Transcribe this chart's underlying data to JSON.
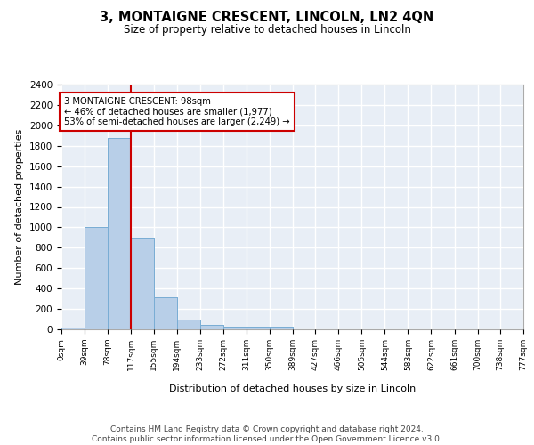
{
  "title": "3, MONTAIGNE CRESCENT, LINCOLN, LN2 4QN",
  "subtitle": "Size of property relative to detached houses in Lincoln",
  "xlabel": "Distribution of detached houses by size in Lincoln",
  "ylabel": "Number of detached properties",
  "bins": [
    0,
    39,
    78,
    117,
    155,
    194,
    233,
    272,
    311,
    350,
    389,
    427,
    466,
    505,
    544,
    583,
    622,
    661,
    700,
    738,
    777
  ],
  "bar_heights": [
    20,
    1000,
    1880,
    900,
    310,
    100,
    45,
    30,
    25,
    25,
    0,
    0,
    0,
    0,
    0,
    0,
    0,
    0,
    0,
    0
  ],
  "bar_color": "#b8cfe8",
  "bar_edge_color": "#7aadd4",
  "background_color": "#e8eef6",
  "grid_color": "#ffffff",
  "ylim": [
    0,
    2400
  ],
  "yticks": [
    0,
    200,
    400,
    600,
    800,
    1000,
    1200,
    1400,
    1600,
    1800,
    2000,
    2200,
    2400
  ],
  "red_line_x": 117,
  "annotation_text": "3 MONTAIGNE CRESCENT: 98sqm\n← 46% of detached houses are smaller (1,977)\n53% of semi-detached houses are larger (2,249) →",
  "annotation_box_color": "#ffffff",
  "annotation_border_color": "#cc0000",
  "footer_text": "Contains HM Land Registry data © Crown copyright and database right 2024.\nContains public sector information licensed under the Open Government Licence v3.0.",
  "tick_labels": [
    "0sqm",
    "39sqm",
    "78sqm",
    "117sqm",
    "155sqm",
    "194sqm",
    "233sqm",
    "272sqm",
    "311sqm",
    "350sqm",
    "389sqm",
    "427sqm",
    "466sqm",
    "505sqm",
    "544sqm",
    "583sqm",
    "622sqm",
    "661sqm",
    "700sqm",
    "738sqm",
    "777sqm"
  ]
}
